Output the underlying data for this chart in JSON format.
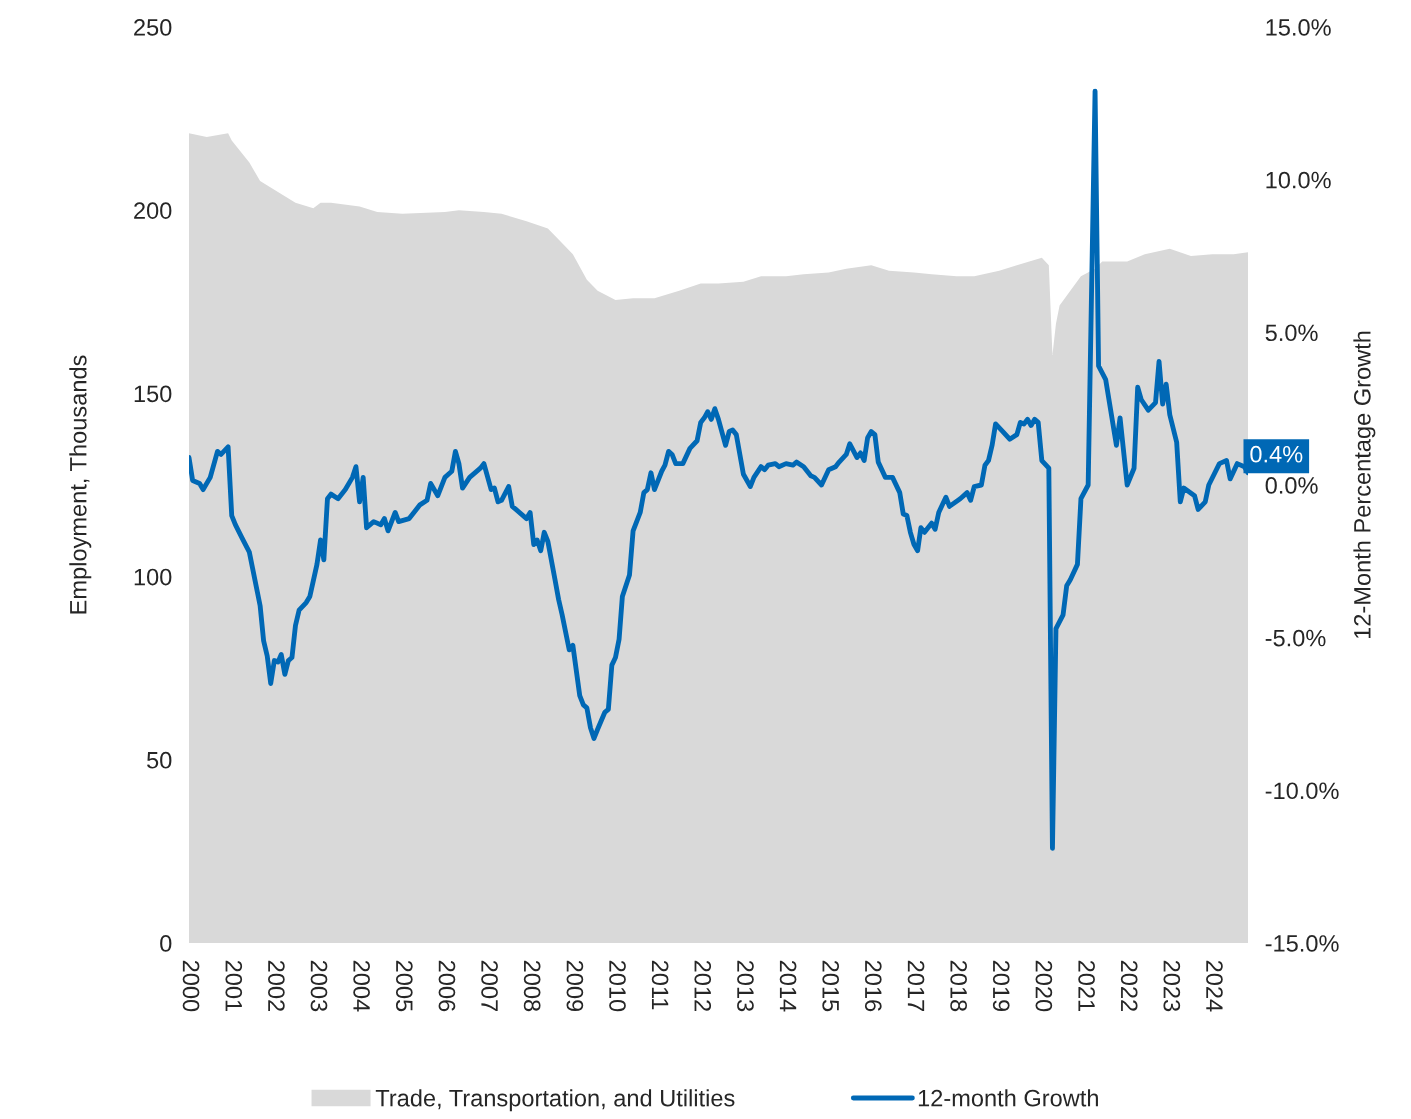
{
  "chart_data": {
    "type": "area",
    "xlim": [
      "2000-01",
      "2024-11"
    ],
    "xticks": [
      {
        "value": "2000-01",
        "label": "2000"
      },
      {
        "value": "2001-01",
        "label": "2001"
      },
      {
        "value": "2002-01",
        "label": "2002"
      },
      {
        "value": "2003-01",
        "label": "2003"
      },
      {
        "value": "2004-01",
        "label": "2004"
      },
      {
        "value": "2005-01",
        "label": "2005"
      },
      {
        "value": "2006-01",
        "label": "2006"
      },
      {
        "value": "2007-01",
        "label": "2007"
      },
      {
        "value": "2008-01",
        "label": "2008"
      },
      {
        "value": "2009-01",
        "label": "2009"
      },
      {
        "value": "2010-01",
        "label": "2010"
      },
      {
        "value": "2011-01",
        "label": "2011"
      },
      {
        "value": "2012-01",
        "label": "2012"
      },
      {
        "value": "2013-01",
        "label": "2013"
      },
      {
        "value": "2014-01",
        "label": "2014"
      },
      {
        "value": "2015-01",
        "label": "2015"
      },
      {
        "value": "2016-01",
        "label": "2016"
      },
      {
        "value": "2017-01",
        "label": "2017"
      },
      {
        "value": "2018-01",
        "label": "2018"
      },
      {
        "value": "2019-01",
        "label": "2019"
      },
      {
        "value": "2020-01",
        "label": "2020"
      },
      {
        "value": "2021-01",
        "label": "2021"
      },
      {
        "value": "2022-01",
        "label": "2022"
      },
      {
        "value": "2023-01",
        "label": "2023"
      },
      {
        "value": "2024-01",
        "label": "2024"
      }
    ],
    "ylabel": "Employment, Thousands",
    "y2label": "12-Month Percentage Growth",
    "ylim": [
      0,
      250
    ],
    "yticks": [
      0,
      50,
      100,
      150,
      200,
      250
    ],
    "y2lim": [
      -15,
      15
    ],
    "y2ticks": [
      {
        "value": -15,
        "label": "-15.0%"
      },
      {
        "value": -10,
        "label": "-10.0%"
      },
      {
        "value": -5,
        "label": "-5.0%"
      },
      {
        "value": 0,
        "label": "0.0%"
      },
      {
        "value": 5,
        "label": "5.0%"
      },
      {
        "value": 10,
        "label": "10.0%"
      },
      {
        "value": 15,
        "label": "15.0%"
      }
    ],
    "grid": false,
    "legend": "bottom",
    "series": [
      {
        "name": "Trade, Transportation, and Utilities",
        "color": "#d9d9d9",
        "x": [
          "2000-01",
          "2000-06",
          "2000-12",
          "2001-01",
          "2001-06",
          "2001-09",
          "2002-02",
          "2002-07",
          "2002-12",
          "2003-02",
          "2003-05",
          "2004-01",
          "2004-06",
          "2005-01",
          "2006-01",
          "2006-05",
          "2006-12",
          "2007-05",
          "2007-12",
          "2008-06",
          "2008-09",
          "2009-01",
          "2009-05",
          "2009-08",
          "2010-01",
          "2010-06",
          "2010-12",
          "2011-07",
          "2012-01",
          "2012-06",
          "2013-01",
          "2013-06",
          "2014-01",
          "2014-06",
          "2015-01",
          "2015-06",
          "2016-01",
          "2016-06",
          "2017-01",
          "2017-06",
          "2018-01",
          "2018-06",
          "2019-01",
          "2019-06",
          "2020-01",
          "2020-03",
          "2020-04",
          "2020-05",
          "2020-06",
          "2020-09",
          "2020-12",
          "2021-04",
          "2021-06",
          "2022-01",
          "2022-06",
          "2023-01",
          "2023-07",
          "2024-01",
          "2024-07",
          "2024-11"
        ],
        "values": [
          221,
          220,
          221,
          219,
          213,
          208,
          205,
          202,
          200.5,
          202,
          202,
          201,
          199.5,
          199,
          199.5,
          200,
          199.5,
          199,
          197,
          195,
          192,
          188,
          181,
          178,
          175.5,
          176,
          176,
          178,
          180,
          180,
          180.5,
          182,
          182,
          182.5,
          183,
          184,
          185,
          183.5,
          183,
          182.5,
          182,
          182,
          183.5,
          185,
          187,
          185,
          160.5,
          169,
          174,
          178,
          182,
          184,
          186,
          186,
          188,
          189.5,
          187.5,
          188,
          188,
          188.5
        ]
      },
      {
        "name": "12-month Growth",
        "type": "line",
        "axis": "y2",
        "color": "#0068b5",
        "line_style": "solid",
        "x": [
          "2000-01",
          "2000-02",
          "2000-04",
          "2000-05",
          "2000-07",
          "2000-09",
          "2000-10",
          "2000-12",
          "2001-01",
          "2001-02",
          "2001-04",
          "2001-06",
          "2001-09",
          "2001-10",
          "2001-11",
          "2001-12",
          "2002-01",
          "2002-02",
          "2002-03",
          "2002-04",
          "2002-05",
          "2002-06",
          "2002-07",
          "2002-08",
          "2002-10",
          "2002-11",
          "2003-01",
          "2003-02",
          "2003-03",
          "2003-04",
          "2003-05",
          "2003-07",
          "2003-09",
          "2003-11",
          "2003-12",
          "2004-01",
          "2004-02",
          "2004-03",
          "2004-05",
          "2004-07",
          "2004-08",
          "2004-09",
          "2004-11",
          "2004-12",
          "2005-03",
          "2005-06",
          "2005-08",
          "2005-09",
          "2005-11",
          "2006-01",
          "2006-03",
          "2006-04",
          "2006-05",
          "2006-06",
          "2006-08",
          "2006-11",
          "2006-12",
          "2007-02",
          "2007-03",
          "2007-04",
          "2007-05",
          "2007-07",
          "2007-08",
          "2007-09",
          "2007-12",
          "2008-01",
          "2008-02",
          "2008-03",
          "2008-04",
          "2008-05",
          "2008-06",
          "2008-08",
          "2008-09",
          "2008-10",
          "2008-12",
          "2009-01",
          "2009-03",
          "2009-04",
          "2009-05",
          "2009-06",
          "2009-07",
          "2009-08",
          "2009-10",
          "2009-11",
          "2009-12",
          "2010-01",
          "2010-02",
          "2010-03",
          "2010-05",
          "2010-06",
          "2010-08",
          "2010-09",
          "2010-10",
          "2010-11",
          "2010-12",
          "2011-02",
          "2011-03",
          "2011-04",
          "2011-05",
          "2011-06",
          "2011-08",
          "2011-10",
          "2011-12",
          "2012-01",
          "2012-02",
          "2012-03",
          "2012-04",
          "2012-05",
          "2012-06",
          "2012-08",
          "2012-09",
          "2012-10",
          "2012-11",
          "2013-01",
          "2013-03",
          "2013-04",
          "2013-06",
          "2013-07",
          "2013-08",
          "2013-10",
          "2013-11",
          "2014-01",
          "2014-03",
          "2014-04",
          "2014-06",
          "2014-08",
          "2014-09",
          "2014-11",
          "2015-01",
          "2015-03",
          "2015-04",
          "2015-06",
          "2015-07",
          "2015-09",
          "2015-10",
          "2015-11",
          "2015-12",
          "2016-01",
          "2016-02",
          "2016-03",
          "2016-05",
          "2016-07",
          "2016-09",
          "2016-10",
          "2016-11",
          "2016-12",
          "2017-01",
          "2017-02",
          "2017-03",
          "2017-04",
          "2017-06",
          "2017-07",
          "2017-08",
          "2017-10",
          "2017-11",
          "2018-02",
          "2018-04",
          "2018-05",
          "2018-06",
          "2018-08",
          "2018-09",
          "2018-10",
          "2018-11",
          "2018-12",
          "2019-02",
          "2019-04",
          "2019-06",
          "2019-07",
          "2019-08",
          "2019-09",
          "2019-10",
          "2019-11",
          "2019-12",
          "2020-01",
          "2020-03",
          "2020-04",
          "2020-05",
          "2020-07",
          "2020-08",
          "2020-09",
          "2020-11",
          "2020-12",
          "2021-02",
          "2021-04",
          "2021-05",
          "2021-07",
          "2021-10",
          "2021-11",
          "2022-01",
          "2022-03",
          "2022-04",
          "2022-05",
          "2022-07",
          "2022-09",
          "2022-10",
          "2022-11",
          "2022-12",
          "2023-01",
          "2023-03",
          "2023-04",
          "2023-05",
          "2023-08",
          "2023-09",
          "2023-11",
          "2023-12",
          "2024-03",
          "2024-05",
          "2024-06",
          "2024-08",
          "2024-10",
          "2024-11"
        ],
        "values": [
          0.9,
          0.15,
          0.05,
          -0.15,
          0.25,
          1.1,
          1.0,
          1.25,
          -1.0,
          -1.3,
          -1.75,
          -2.2,
          -3.95,
          -5.1,
          -5.6,
          -6.5,
          -5.75,
          -5.8,
          -5.55,
          -6.2,
          -5.75,
          -5.65,
          -4.6,
          -4.1,
          -3.85,
          -3.65,
          -2.6,
          -1.8,
          -2.45,
          -0.45,
          -0.3,
          -0.45,
          -0.15,
          0.25,
          0.6,
          -0.55,
          0.25,
          -1.4,
          -1.2,
          -1.3,
          -1.1,
          -1.5,
          -0.9,
          -1.2,
          -1.1,
          -0.65,
          -0.5,
          0.05,
          -0.35,
          0.25,
          0.45,
          1.1,
          0.7,
          -0.1,
          0.25,
          0.55,
          0.7,
          -0.15,
          -0.1,
          -0.55,
          -0.5,
          -0.05,
          -0.7,
          -0.8,
          -1.1,
          -0.9,
          -1.95,
          -1.8,
          -2.15,
          -1.55,
          -1.85,
          -3.1,
          -3.75,
          -4.25,
          -5.4,
          -5.25,
          -6.9,
          -7.2,
          -7.3,
          -7.95,
          -8.3,
          -8.0,
          -7.45,
          -7.35,
          -5.9,
          -5.65,
          -5.05,
          -3.65,
          -2.95,
          -1.5,
          -0.9,
          -0.25,
          -0.15,
          0.4,
          -0.15,
          0.45,
          0.65,
          1.1,
          1.0,
          0.7,
          0.7,
          1.2,
          1.45,
          2.05,
          2.2,
          2.4,
          2.15,
          2.5,
          2.15,
          1.3,
          1.75,
          1.8,
          1.65,
          0.35,
          -0.05,
          0.25,
          0.6,
          0.5,
          0.65,
          0.7,
          0.6,
          0.7,
          0.65,
          0.75,
          0.6,
          0.3,
          0.25,
          0.0,
          0.5,
          0.6,
          0.75,
          1.0,
          1.35,
          0.9,
          1.05,
          0.8,
          1.55,
          1.75,
          1.65,
          0.75,
          0.25,
          0.25,
          -0.25,
          -0.95,
          -1.0,
          -1.55,
          -1.95,
          -2.15,
          -1.4,
          -1.55,
          -1.25,
          -1.45,
          -0.9,
          -0.4,
          -0.7,
          -0.45,
          -0.25,
          -0.5,
          -0.05,
          0.0,
          0.65,
          0.8,
          1.3,
          2.0,
          1.75,
          1.5,
          1.65,
          2.05,
          2.0,
          2.15,
          1.95,
          2.15,
          2.05,
          0.8,
          0.55,
          -11.9,
          -4.7,
          -4.25,
          -3.3,
          -3.1,
          -2.6,
          -0.45,
          0.0,
          12.9,
          3.9,
          3.45,
          1.3,
          2.2,
          0.0,
          0.55,
          3.2,
          2.8,
          2.45,
          2.7,
          4.05,
          2.65,
          3.3,
          2.3,
          1.4,
          -0.55,
          -0.1,
          -0.35,
          -0.8,
          -0.55,
          0.0,
          0.7,
          0.8,
          0.2,
          0.7,
          0.6,
          0.4
        ]
      }
    ],
    "annotations": [
      "0.4%"
    ]
  }
}
